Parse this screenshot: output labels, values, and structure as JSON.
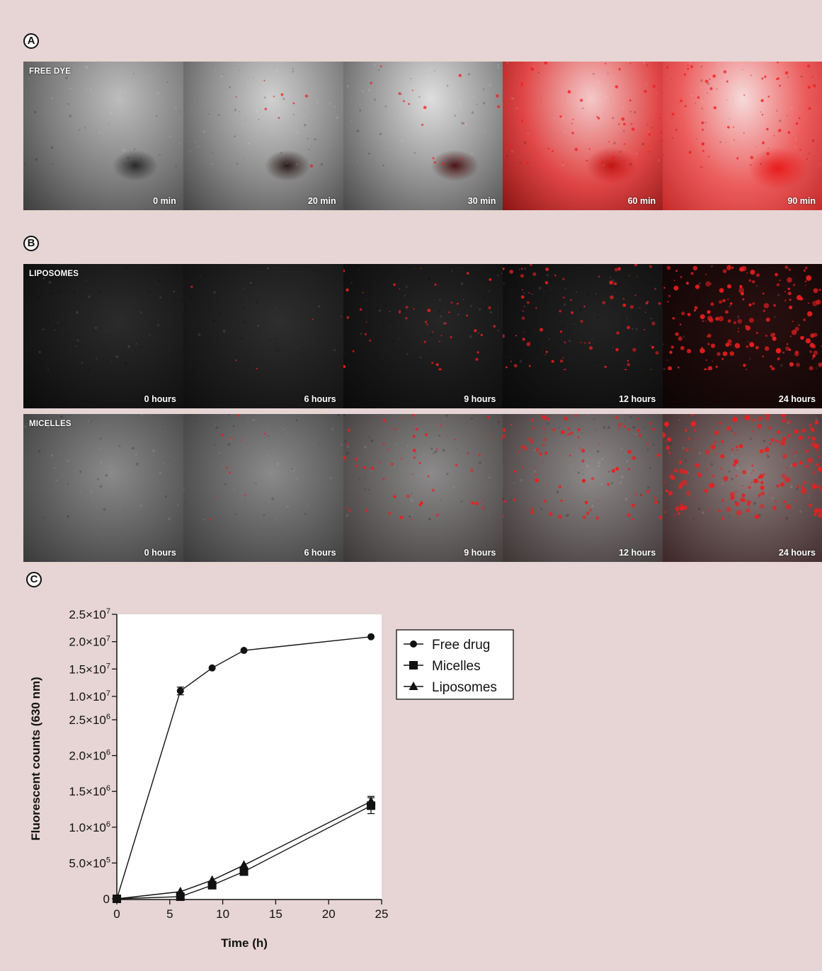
{
  "panels": {
    "a": {
      "letter": "A",
      "label": "FREE DYE",
      "times": [
        "0 min",
        "20 min",
        "30 min",
        "60 min",
        "90 min"
      ],
      "red_signal": [
        0.0,
        0.12,
        0.28,
        0.75,
        0.95
      ]
    },
    "b": {
      "letter": "B",
      "liposomes": {
        "label": "LIPOSOMES",
        "times": [
          "0 hours",
          "6 hours",
          "9 hours",
          "12 hours",
          "24 hours"
        ],
        "red_spot_density": [
          0,
          0.02,
          0.25,
          0.45,
          0.95
        ]
      },
      "micelles": {
        "label": "MICELLES",
        "times": [
          "0 hours",
          "6 hours",
          "9 hours",
          "12 hours",
          "24 hours"
        ],
        "red_spot_density": [
          0,
          0.05,
          0.3,
          0.5,
          1.0
        ]
      }
    },
    "c": {
      "letter": "C"
    }
  },
  "chart_data": {
    "type": "line",
    "xlabel": "Time (h)",
    "ylabel": "Fluorescent counts (630 nm)",
    "xlim": [
      0,
      25
    ],
    "x_ticks": [
      "0",
      "5",
      "10",
      "15",
      "20",
      "25"
    ],
    "y_axis": "broken: lower segment 0 to 2.5×10^6, upper segment 1.0×10^7 to 2.5×10^7",
    "y_ticks_lower": [
      "0",
      "5.0×10^5",
      "1.0×10^6",
      "1.5×10^6",
      "2.0×10^6",
      "2.5×10^6"
    ],
    "y_ticks_upper": [
      "1.0×10^7",
      "1.5×10^7",
      "2.0×10^7",
      "2.5×10^7"
    ],
    "y_tick_labels": [
      {
        "mant": "0",
        "exp": "",
        "v": 0
      },
      {
        "mant": "5.0×10",
        "exp": "5",
        "v": 500000
      },
      {
        "mant": "1.0×10",
        "exp": "6",
        "v": 1000000
      },
      {
        "mant": "1.5×10",
        "exp": "6",
        "v": 1500000
      },
      {
        "mant": "2.0×10",
        "exp": "6",
        "v": 2000000
      },
      {
        "mant": "2.5×10",
        "exp": "6",
        "v": 2500000
      },
      {
        "mant": "1.0×10",
        "exp": "7",
        "v": 10000000
      },
      {
        "mant": "1.5×10",
        "exp": "7",
        "v": 15000000
      },
      {
        "mant": "2.0×10",
        "exp": "7",
        "v": 20000000
      },
      {
        "mant": "2.5×10",
        "exp": "7",
        "v": 25000000
      }
    ],
    "legend_position": "right",
    "series": [
      {
        "name": "Free drug",
        "marker": "circle",
        "x": [
          0,
          6,
          9,
          12,
          24
        ],
        "y": [
          0,
          11000000,
          15200000,
          18400000,
          20900000
        ],
        "err": [
          0,
          700000,
          0,
          0,
          0
        ]
      },
      {
        "name": "Micelles",
        "marker": "square",
        "x": [
          0,
          6,
          9,
          12,
          24
        ],
        "y": [
          0,
          30000,
          190000,
          380000,
          1300000
        ],
        "err": [
          0,
          0,
          0,
          0,
          110000
        ]
      },
      {
        "name": "Liposomes",
        "marker": "triangle",
        "x": [
          0,
          6,
          9,
          12,
          24
        ],
        "y": [
          0,
          100000,
          260000,
          470000,
          1360000
        ],
        "err": [
          0,
          0,
          0,
          0,
          70000
        ]
      }
    ]
  }
}
